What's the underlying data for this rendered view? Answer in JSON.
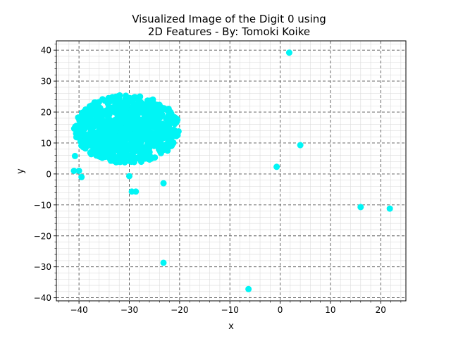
{
  "chart_data": {
    "type": "scatter",
    "title_line1": "Visualized Image of the Digit 0 using",
    "title_line2": "2D Features - By: Tomoki Koike",
    "xlabel": "x",
    "ylabel": "y",
    "xlim": [
      -44.5,
      25
    ],
    "ylim": [
      -41,
      43
    ],
    "xticks": [
      -40,
      -30,
      -20,
      -10,
      0,
      10,
      20
    ],
    "xtick_labels": [
      "−40",
      "−30",
      "−20",
      "−10",
      "0",
      "10",
      "20"
    ],
    "yticks": [
      -40,
      -30,
      -20,
      -10,
      0,
      10,
      20,
      30,
      40
    ],
    "ytick_labels": [
      "−40",
      "−30",
      "−20",
      "−10",
      "0",
      "10",
      "20",
      "30",
      "40"
    ],
    "grid": {
      "major": true,
      "minor": true,
      "major_style": "dashed"
    },
    "marker_color": "#00f5f5",
    "cluster": {
      "description_color": "#00f5f5",
      "center": [
        -30.5,
        14.5
      ],
      "half_widths": [
        10.5,
        11
      ]
    },
    "outliers": [
      {
        "x": 1.8,
        "y": 39.2
      },
      {
        "x": 4.0,
        "y": 9.3
      },
      {
        "x": -0.7,
        "y": 2.3
      },
      {
        "x": -40.8,
        "y": 5.8
      },
      {
        "x": -41.0,
        "y": 1.0
      },
      {
        "x": -40.0,
        "y": 1.0
      },
      {
        "x": -39.5,
        "y": -1.0
      },
      {
        "x": -30.0,
        "y": -0.7
      },
      {
        "x": -29.5,
        "y": -5.7
      },
      {
        "x": -28.7,
        "y": -5.7
      },
      {
        "x": -23.2,
        "y": -3.0
      },
      {
        "x": -23.2,
        "y": -28.7
      },
      {
        "x": -6.3,
        "y": -37.2
      },
      {
        "x": 16.0,
        "y": -10.7
      },
      {
        "x": 21.8,
        "y": -11.2
      }
    ]
  }
}
